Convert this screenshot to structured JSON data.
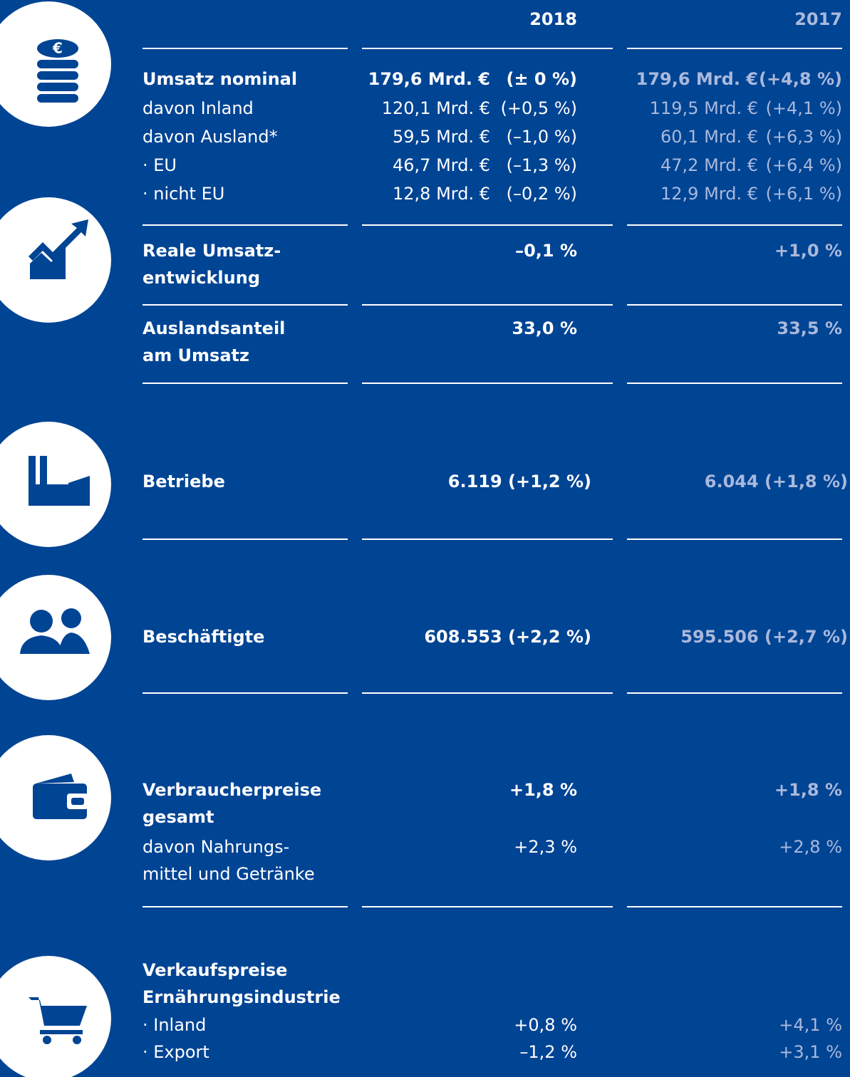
{
  "columns": [
    "2018",
    "2017"
  ],
  "sections": [
    {
      "rows": [
        {
          "label": [
            "Umsatz nominal"
          ],
          "v2018": [
            "179,6 Mrd. €",
            "(± 0 %)"
          ],
          "v2017": [
            "179,6 Mrd. €",
            "(+4,8 %)"
          ]
        },
        {
          "label": [
            "davon Inland"
          ],
          "v2018": [
            "120,1 Mrd. €",
            "(+0,5 %)"
          ],
          "v2017": [
            "119,5 Mrd. €",
            "(+4,1 %)"
          ]
        },
        {
          "label": [
            "davon Ausland*"
          ],
          "v2018": [
            "59,5 Mrd. €",
            "(–1,0 %)"
          ],
          "v2017": [
            "60,1 Mrd. €",
            "(+6,3 %)"
          ]
        },
        {
          "label": [
            "· EU"
          ],
          "v2018": [
            "46,7 Mrd. €",
            "(–1,3 %)"
          ],
          "v2017": [
            "47,2 Mrd. €",
            "(+6,4 %)"
          ]
        },
        {
          "label": [
            "· nicht EU"
          ],
          "v2018": [
            "12,8 Mrd. €",
            "(–0,2 %)"
          ],
          "v2017": [
            "12,9 Mrd. €",
            "(+6,1 %)"
          ]
        }
      ]
    },
    {
      "rows": [
        {
          "label": [
            "Reale Umsatz-",
            "entwicklung"
          ],
          "v2018": [
            "–0,1 %"
          ],
          "v2017": [
            "+1,0 %"
          ]
        }
      ]
    },
    {
      "rows": [
        {
          "label": [
            "Auslandsanteil",
            "am Umsatz"
          ],
          "v2018": [
            "33,0 %"
          ],
          "v2017": [
            "33,5 %"
          ]
        }
      ]
    },
    {
      "rows": [
        {
          "label": [
            "Betriebe"
          ],
          "v2018": [
            "6.119 (+1,2 %)"
          ],
          "v2017": [
            "6.044 (+1,8 %)"
          ]
        }
      ]
    },
    {
      "rows": [
        {
          "label": [
            "Beschäftigte"
          ],
          "v2018": [
            "608.553 (+2,2 %)"
          ],
          "v2017": [
            "595.506 (+2,7 %)"
          ]
        }
      ]
    },
    {
      "rows": [
        {
          "label": [
            "Verbraucherpreise",
            "gesamt"
          ],
          "v2018": [
            "+1,8 %"
          ],
          "v2017": [
            "+1,8 %"
          ]
        },
        {
          "label": [
            "davon Nahrungs-",
            "mittel und Getränke"
          ],
          "v2018": [
            "+2,3 %"
          ],
          "v2017": [
            "+2,8 %"
          ]
        }
      ]
    },
    {
      "rows": [
        {
          "label": [
            "Verkaufspreise",
            "Ernährungsindustrie"
          ]
        },
        {
          "label": [
            "· Inland"
          ],
          "v2018": [
            "+0,8 %"
          ],
          "v2017": [
            "+4,1 %"
          ]
        },
        {
          "label": [
            "· Export"
          ],
          "v2018": [
            "–1,2 %"
          ],
          "v2017": [
            "+3,1 %"
          ]
        }
      ]
    }
  ]
}
